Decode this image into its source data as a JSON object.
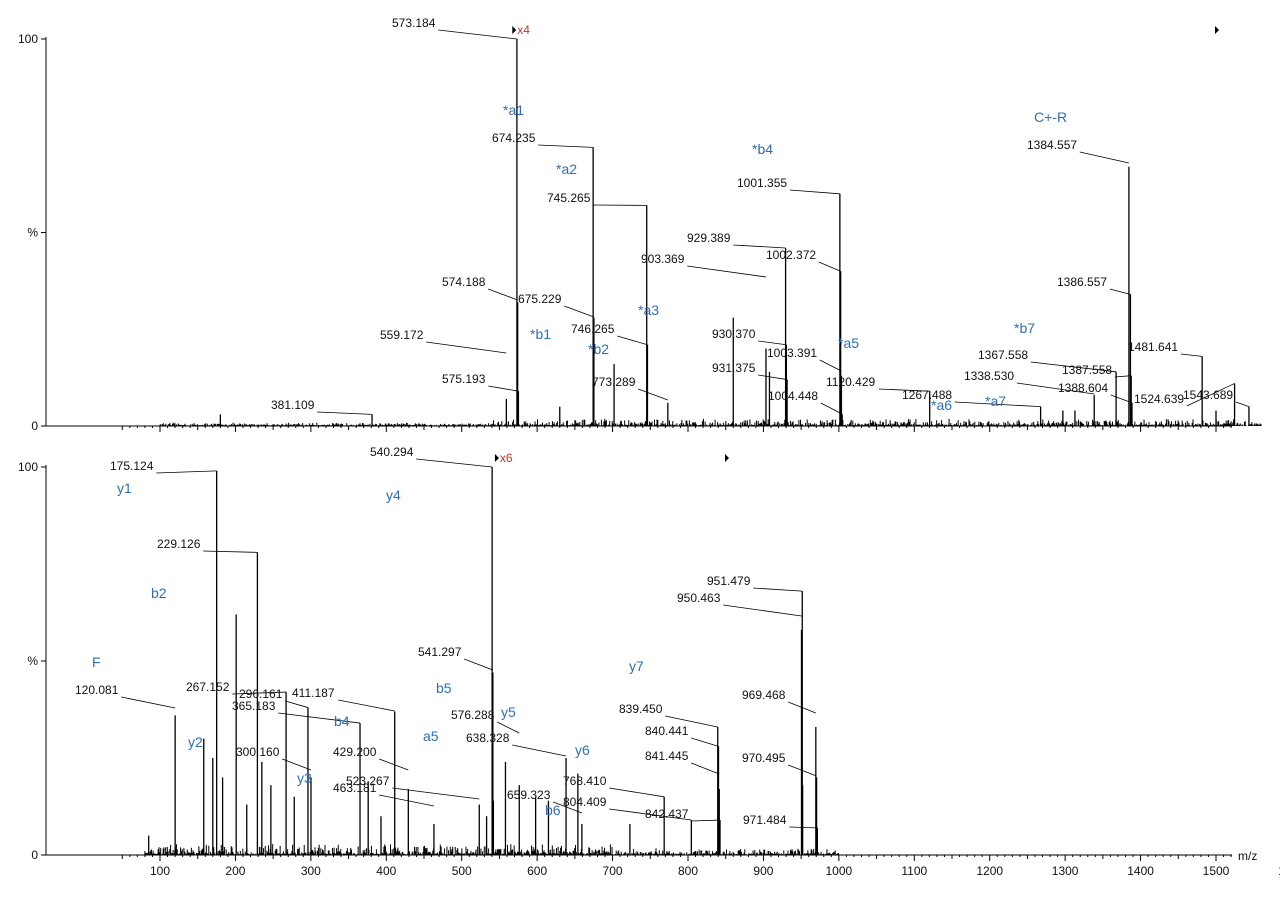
{
  "chart_data": {
    "type": "bar",
    "xlabel": "m/z",
    "x_ticks": [
      100,
      200,
      300,
      400,
      500,
      600,
      700,
      800,
      900,
      1000,
      1100,
      1200,
      1300,
      1400,
      1500,
      1600
    ],
    "panels": [
      {
        "y_ticks": [
          {
            "value": 0,
            "label": "0"
          },
          {
            "value": 50,
            "label": "%"
          },
          {
            "value": 100,
            "label": "100"
          }
        ],
        "scale_marker": {
          "x": 575,
          "label": "x4"
        },
        "peaks": [
          {
            "mz": 180.0,
            "intensity": 3
          },
          {
            "mz": 381.109,
            "intensity": 3,
            "label": "381.109"
          },
          {
            "mz": 559.172,
            "intensity": 7,
            "label": "559.172"
          },
          {
            "mz": 573.184,
            "intensity": 100,
            "label": "573.184"
          },
          {
            "mz": 574.188,
            "intensity": 32,
            "label": "574.188"
          },
          {
            "mz": 575.193,
            "intensity": 9,
            "label": "575.193"
          },
          {
            "mz": 630.0,
            "intensity": 5
          },
          {
            "mz": 674.235,
            "intensity": 72,
            "label": "674.235",
            "ion": "*a1"
          },
          {
            "mz": 675.229,
            "intensity": 28,
            "label": "675.229"
          },
          {
            "mz": 702.0,
            "intensity": 16,
            "ion": "*b1"
          },
          {
            "mz": 745.265,
            "intensity": 57,
            "label": "745.265",
            "ion": "*a2"
          },
          {
            "mz": 746.265,
            "intensity": 21,
            "label": "746.265"
          },
          {
            "mz": 773.289,
            "intensity": 6,
            "label": "773.289",
            "ion": "*b2"
          },
          {
            "mz": 860.0,
            "intensity": 28,
            "ion": "*a3"
          },
          {
            "mz": 903.369,
            "intensity": 20,
            "label": "903.369"
          },
          {
            "mz": 908.0,
            "intensity": 14
          },
          {
            "mz": 929.389,
            "intensity": 46,
            "label": "929.389"
          },
          {
            "mz": 930.37,
            "intensity": 21,
            "label": "930.370"
          },
          {
            "mz": 931.375,
            "intensity": 12,
            "label": "931.375"
          },
          {
            "mz": 1001.355,
            "intensity": 60,
            "label": "1001.355",
            "ion": "*b4"
          },
          {
            "mz": 1002.372,
            "intensity": 40,
            "label": "1002.372"
          },
          {
            "mz": 1003.391,
            "intensity": 13,
            "label": "1003.391"
          },
          {
            "mz": 1004.448,
            "intensity": 3,
            "label": "1004.448"
          },
          {
            "mz": 1120.429,
            "intensity": 9,
            "label": "1120.429",
            "ion": "*a5"
          },
          {
            "mz": 1267.488,
            "intensity": 5,
            "label": "1267.488",
            "ion": "*a6"
          },
          {
            "mz": 1297.0,
            "intensity": 4,
            "ion": "*a7"
          },
          {
            "mz": 1313.0,
            "intensity": 4
          },
          {
            "mz": 1338.53,
            "intensity": 8,
            "label": "1338.530"
          },
          {
            "mz": 1367.558,
            "intensity": 14,
            "label": "1367.558",
            "ion": "*b7"
          },
          {
            "mz": 1384.557,
            "intensity": 67,
            "label": "1384.557",
            "ion": "C+-R"
          },
          {
            "mz": 1386.557,
            "intensity": 34,
            "label": "1386.557"
          },
          {
            "mz": 1387.558,
            "intensity": 13,
            "label": "1387.558"
          },
          {
            "mz": 1388.604,
            "intensity": 6,
            "label": "1388.604"
          },
          {
            "mz": 1481.641,
            "intensity": 18,
            "label": "1481.641"
          },
          {
            "mz": 1500.0,
            "intensity": 4
          },
          {
            "mz": 1524.639,
            "intensity": 11,
            "label": "1524.639"
          },
          {
            "mz": 1543.689,
            "intensity": 5,
            "label": "1543.689"
          }
        ]
      },
      {
        "y_ticks": [
          {
            "value": 0,
            "label": "0"
          },
          {
            "value": 50,
            "label": "%"
          },
          {
            "value": 100,
            "label": "100"
          }
        ],
        "scale_marker": {
          "x": 552,
          "label": "x6"
        },
        "peaks": [
          {
            "mz": 85.0,
            "intensity": 5
          },
          {
            "mz": 120.081,
            "intensity": 36,
            "label": "120.081",
            "ion": "F"
          },
          {
            "mz": 158.0,
            "intensity": 30
          },
          {
            "mz": 170.0,
            "intensity": 25
          },
          {
            "mz": 175.124,
            "intensity": 99,
            "label": "175.124",
            "ion": "y1"
          },
          {
            "mz": 183.0,
            "intensity": 20
          },
          {
            "mz": 201.0,
            "intensity": 62,
            "ion": "b2"
          },
          {
            "mz": 215.0,
            "intensity": 13
          },
          {
            "mz": 229.126,
            "intensity": 78,
            "label": "229.126"
          },
          {
            "mz": 235.0,
            "intensity": 24,
            "ion": "y2"
          },
          {
            "mz": 247.0,
            "intensity": 18
          },
          {
            "mz": 267.152,
            "intensity": 42,
            "label": "267.152"
          },
          {
            "mz": 278.0,
            "intensity": 15
          },
          {
            "mz": 296.161,
            "intensity": 38,
            "label": "296.161"
          },
          {
            "mz": 300.16,
            "intensity": 20,
            "label": "300.160"
          },
          {
            "mz": 365.183,
            "intensity": 34,
            "label": "365.183"
          },
          {
            "mz": 376.0,
            "intensity": 19,
            "ion": "y3"
          },
          {
            "mz": 393.0,
            "intensity": 10
          },
          {
            "mz": 411.187,
            "intensity": 37,
            "label": "411.187"
          },
          {
            "mz": 429.2,
            "intensity": 17,
            "label": "429.200",
            "ion": "b4"
          },
          {
            "mz": 463.181,
            "intensity": 8,
            "label": "463.181"
          },
          {
            "mz": 523.267,
            "intensity": 13,
            "label": "523.267"
          },
          {
            "mz": 533.0,
            "intensity": 10
          },
          {
            "mz": 540.294,
            "intensity": 100,
            "label": "540.294",
            "ion": "y4"
          },
          {
            "mz": 541.297,
            "intensity": 47,
            "label": "541.297"
          },
          {
            "mz": 542.0,
            "intensity": 14
          },
          {
            "mz": 558.0,
            "intensity": 24,
            "ion": "a5"
          },
          {
            "mz": 576.288,
            "intensity": 18,
            "label": "576.288",
            "ion": "b5"
          },
          {
            "mz": 598.0,
            "intensity": 15
          },
          {
            "mz": 615.0,
            "intensity": 14
          },
          {
            "mz": 638.328,
            "intensity": 25,
            "label": "638.328"
          },
          {
            "mz": 654.0,
            "intensity": 21,
            "ion": "y5"
          },
          {
            "mz": 659.323,
            "intensity": 8,
            "label": "659.323"
          },
          {
            "mz": 723.0,
            "intensity": 8,
            "ion": "b6"
          },
          {
            "mz": 768.41,
            "intensity": 15,
            "label": "768.410",
            "ion": "y6"
          },
          {
            "mz": 804.409,
            "intensity": 9,
            "label": "804.409"
          },
          {
            "mz": 839.45,
            "intensity": 33,
            "label": "839.450",
            "ion": "y7"
          },
          {
            "mz": 840.441,
            "intensity": 28,
            "label": "840.441"
          },
          {
            "mz": 841.445,
            "intensity": 17,
            "label": "841.445"
          },
          {
            "mz": 842.437,
            "intensity": 9,
            "label": "842.437"
          },
          {
            "mz": 950.463,
            "intensity": 58,
            "label": "950.463"
          },
          {
            "mz": 951.479,
            "intensity": 68,
            "label": "951.479"
          },
          {
            "mz": 952.0,
            "intensity": 18
          },
          {
            "mz": 969.468,
            "intensity": 33,
            "label": "969.468"
          },
          {
            "mz": 970.495,
            "intensity": 20,
            "label": "970.495"
          },
          {
            "mz": 971.484,
            "intensity": 7,
            "label": "971.484"
          }
        ]
      }
    ]
  }
}
